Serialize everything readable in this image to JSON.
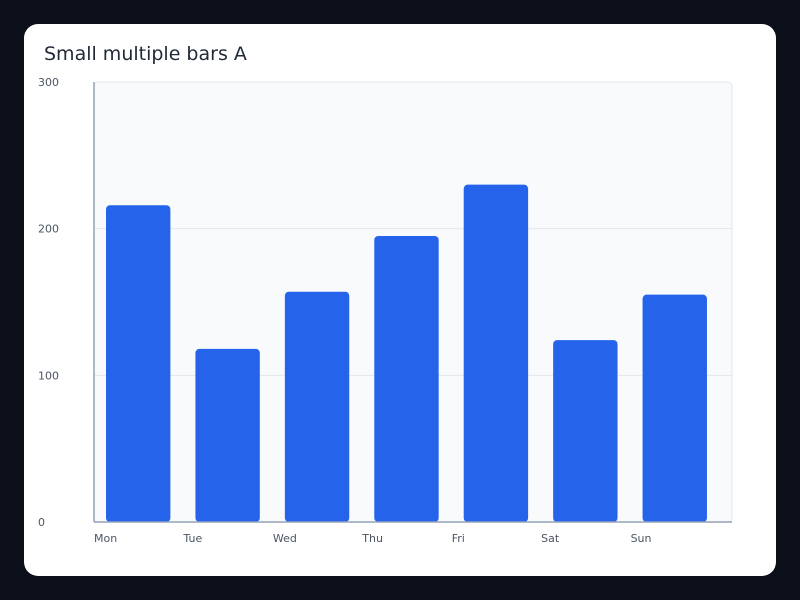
{
  "chart_data": {
    "type": "bar",
    "title": "Small multiple bars A",
    "xlabel": "",
    "ylabel": "",
    "categories": [
      "Mon",
      "Tue",
      "Wed",
      "Thu",
      "Fri",
      "Sat",
      "Sun"
    ],
    "values": [
      216,
      118,
      157,
      195,
      230,
      124,
      155
    ],
    "ylim": [
      0,
      300
    ],
    "yticks": [
      0,
      100,
      200,
      300
    ],
    "grid": true,
    "colors": {
      "bar": "#2563eb",
      "plot_background": "#f8fafc",
      "gridline": "#e5e7eb",
      "axis": "#94a3b8"
    }
  }
}
